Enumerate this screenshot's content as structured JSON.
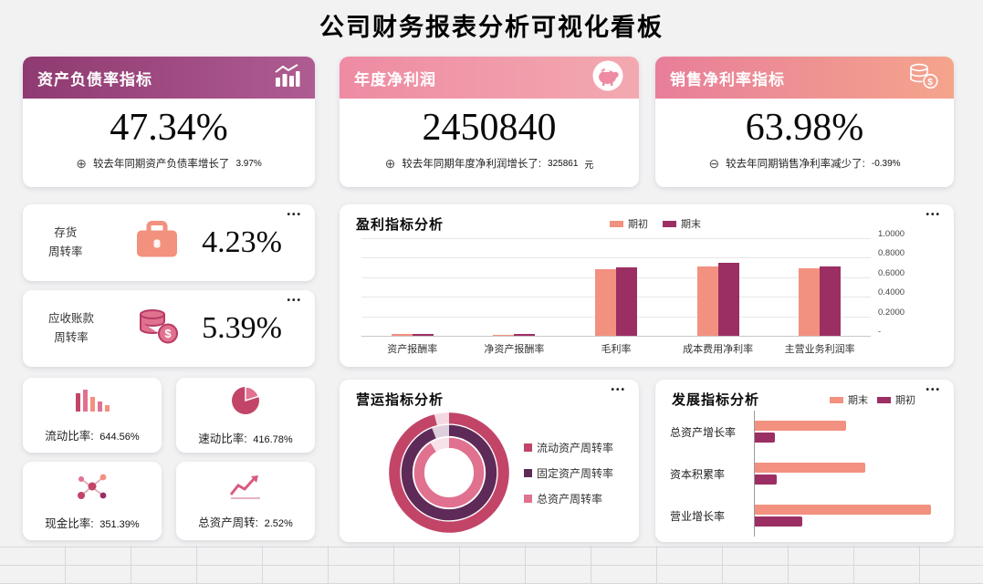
{
  "title": "公司财务报表分析可视化看板",
  "icons": {
    "ellipsis": "•••"
  },
  "colors": {
    "salmon": "#F29180",
    "magenta_dark": "#9B2F63",
    "rose": "#C24568",
    "purple_dark": "#5E2B58",
    "pink": "#E0718F"
  },
  "kpis": [
    {
      "title": "资产负债率指标",
      "value": "47.34%",
      "sign": "⊕",
      "note": "较去年同期资产负债率增长了",
      "note_value": "3.97%",
      "note_suffix": ""
    },
    {
      "title": "年度净利润",
      "value": "2450840",
      "sign": "⊕",
      "note": "较去年同期年度净利润增长了:",
      "note_value": "325861",
      "note_suffix": "元"
    },
    {
      "title": "销售净利率指标",
      "value": "63.98%",
      "sign": "⊖",
      "note": "较去年同期销售净利率减少了:",
      "note_value": "-0.39%",
      "note_suffix": ""
    }
  ],
  "turnover_cards": [
    {
      "label_line1": "存货",
      "label_line2": "周转率",
      "value": "4.23%"
    },
    {
      "label_line1": "应收账款",
      "label_line2": "周转率",
      "value": "5.39%"
    }
  ],
  "ratio_cards": [
    {
      "label": "流动比率:",
      "value": "644.56%"
    },
    {
      "label": "速动比率:",
      "value": "416.78%"
    },
    {
      "label": "现金比率:",
      "value": "351.39%"
    },
    {
      "label": "总资产周转:",
      "value": "2.52%"
    }
  ],
  "chart_data": [
    {
      "type": "bar",
      "title": "盈利指标分析",
      "categories": [
        "资产报酬率",
        "净资产报酬率",
        "毛利率",
        "成本费用净利率",
        "主营业务利润率"
      ],
      "series": [
        {
          "name": "期初",
          "color": "#F29180",
          "values": [
            0.02,
            0.01,
            0.68,
            0.71,
            0.69
          ]
        },
        {
          "name": "期末",
          "color": "#9B2F63",
          "values": [
            0.02,
            0.02,
            0.7,
            0.75,
            0.71
          ]
        }
      ],
      "ylim": [
        0,
        1
      ],
      "yticks": [
        "1.0000",
        "0.8000",
        "0.6000",
        "0.4000",
        "0.2000",
        "-"
      ],
      "legend_position": "top",
      "grid": true
    },
    {
      "type": "pie",
      "title": "营运指标分析",
      "legend_position": "right",
      "series": [
        {
          "name": "流动资产周转率",
          "color": "#C24568",
          "fraction": 0.96
        },
        {
          "name": "固定资产周转率",
          "color": "#5E2B58",
          "fraction": 0.94
        },
        {
          "name": "总资产周转率",
          "color": "#E0718F",
          "fraction": 0.91
        }
      ]
    },
    {
      "type": "bar",
      "orientation": "horizontal",
      "title": "发展指标分析",
      "categories": [
        "总资产增长率",
        "资本积累率",
        "营业增长率"
      ],
      "series": [
        {
          "name": "期末",
          "color": "#F29180",
          "values": [
            0.5,
            0.61,
            0.97
          ]
        },
        {
          "name": "期初",
          "color": "#9B2F63",
          "values": [
            0.11,
            0.12,
            0.26
          ]
        }
      ],
      "legend_position": "top-right",
      "grid": false
    }
  ]
}
